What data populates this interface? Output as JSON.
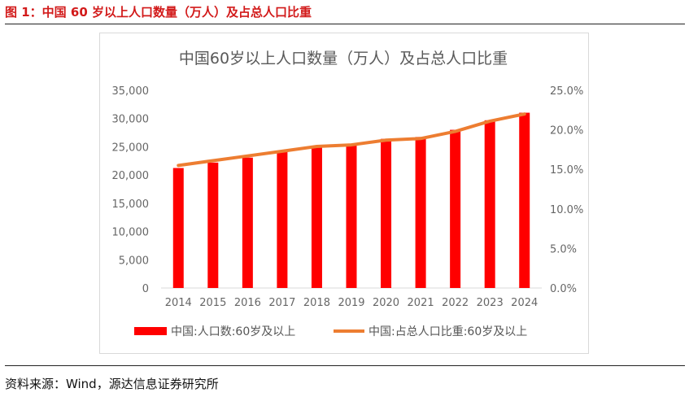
{
  "figure": {
    "caption": "图 1：中国 60 岁以上人口数量（万人）及占总人口比重",
    "source": "资料来源：Wind，源达信息证券研究所"
  },
  "colors": {
    "bar": "#ff0000",
    "line": "#ed7d31",
    "caption": "#d21a1a"
  },
  "chart_data": {
    "type": "bar",
    "title": "中国60岁以上人口数量（万人）及占总人口比重",
    "categories": [
      "2014",
      "2015",
      "2016",
      "2017",
      "2018",
      "2019",
      "2020",
      "2021",
      "2022",
      "2023",
      "2024"
    ],
    "series": [
      {
        "name": "中国:人口数:60岁及以上",
        "type": "bar",
        "axis": "left",
        "values": [
          21242,
          22200,
          23086,
          24090,
          24949,
          25388,
          26402,
          26736,
          28004,
          29697,
          31031
        ]
      },
      {
        "name": "中国:占总人口比重:60岁及以上",
        "type": "line",
        "axis": "right",
        "values": [
          15.5,
          16.1,
          16.7,
          17.3,
          17.9,
          18.1,
          18.7,
          18.9,
          19.8,
          21.1,
          22.0
        ]
      }
    ],
    "y_left": {
      "min": 0,
      "max": 35000,
      "step": 5000,
      "ticks": [
        "0",
        "5,000",
        "10,000",
        "15,000",
        "20,000",
        "25,000",
        "30,000",
        "35,000"
      ]
    },
    "y_right": {
      "min": 0,
      "max": 25,
      "step": 5,
      "ticks": [
        "0.0%",
        "5.0%",
        "10.0%",
        "15.0%",
        "20.0%",
        "25.0%"
      ]
    },
    "grid": false,
    "legend": "bottom"
  }
}
